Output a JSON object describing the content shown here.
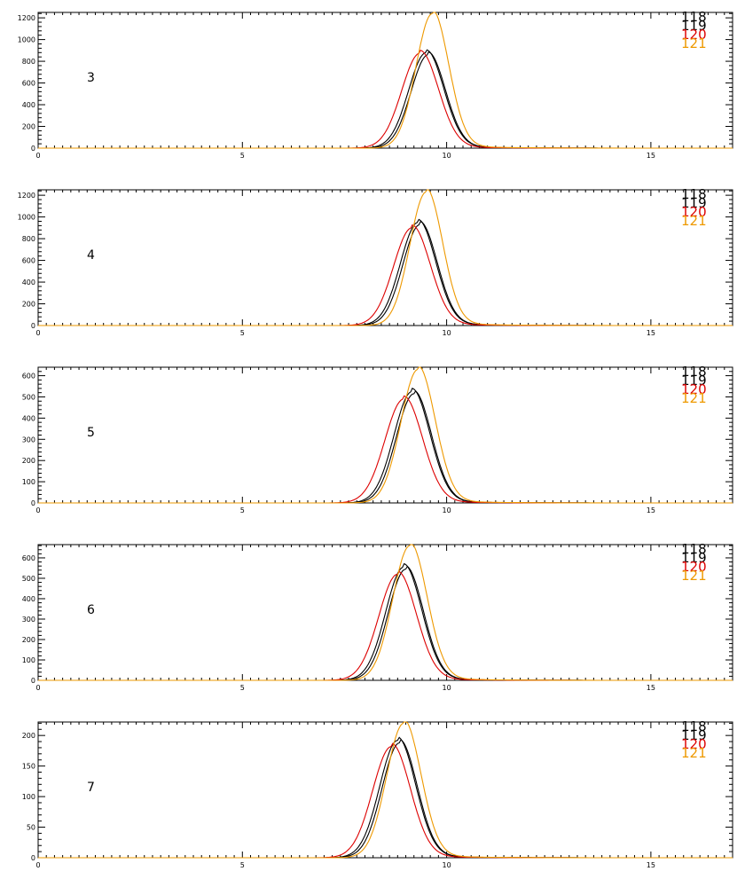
{
  "chart_data": {
    "type": "line",
    "xlim": [
      0,
      17
    ],
    "x_ticks": [
      0,
      5,
      10,
      15
    ],
    "grid": false,
    "legend_placement": "top-right",
    "colors": {
      "118": "#000000",
      "119": "#000000",
      "120": "#dd0000",
      "121": "#ee9900"
    },
    "panels": [
      {
        "label": "3",
        "ylim": [
          0,
          1250
        ],
        "y_ticks": [
          0,
          200,
          400,
          600,
          800,
          1000,
          1200
        ],
        "legend": [
          "118",
          "119",
          "120",
          "121"
        ],
        "series": [
          {
            "name": "118",
            "center": 9.55,
            "peak": 860,
            "width": 0.42
          },
          {
            "name": "119",
            "center": 9.5,
            "peak": 880,
            "width": 0.43
          },
          {
            "name": "120",
            "center": 9.35,
            "peak": 875,
            "width": 0.45
          },
          {
            "name": "121",
            "center": 9.65,
            "peak": 1240,
            "width": 0.4
          }
        ]
      },
      {
        "label": "4",
        "ylim": [
          0,
          1250
        ],
        "y_ticks": [
          0,
          200,
          400,
          600,
          800,
          1000,
          1200
        ],
        "legend": [
          "118",
          "119",
          "120",
          "121"
        ],
        "series": [
          {
            "name": "118",
            "center": 9.35,
            "peak": 930,
            "width": 0.42
          },
          {
            "name": "119",
            "center": 9.3,
            "peak": 950,
            "width": 0.43
          },
          {
            "name": "120",
            "center": 9.15,
            "peak": 900,
            "width": 0.45
          },
          {
            "name": "121",
            "center": 9.5,
            "peak": 1230,
            "width": 0.4
          }
        ]
      },
      {
        "label": "5",
        "ylim": [
          0,
          640
        ],
        "y_ticks": [
          0,
          100,
          200,
          300,
          400,
          500,
          600
        ],
        "legend": [
          "118",
          "119",
          "120",
          "121"
        ],
        "series": [
          {
            "name": "118",
            "center": 9.2,
            "peak": 515,
            "width": 0.43
          },
          {
            "name": "119",
            "center": 9.15,
            "peak": 525,
            "width": 0.44
          },
          {
            "name": "120",
            "center": 8.95,
            "peak": 490,
            "width": 0.46
          },
          {
            "name": "121",
            "center": 9.3,
            "peak": 630,
            "width": 0.42
          }
        ]
      },
      {
        "label": "6",
        "ylim": [
          0,
          665
        ],
        "y_ticks": [
          0,
          100,
          200,
          300,
          400,
          500,
          600
        ],
        "legend": [
          "118",
          "119",
          "120",
          "121"
        ],
        "series": [
          {
            "name": "118",
            "center": 9.0,
            "peak": 545,
            "width": 0.43
          },
          {
            "name": "119",
            "center": 8.95,
            "peak": 555,
            "width": 0.44
          },
          {
            "name": "120",
            "center": 8.8,
            "peak": 520,
            "width": 0.46
          },
          {
            "name": "121",
            "center": 9.1,
            "peak": 660,
            "width": 0.42
          }
        ]
      },
      {
        "label": "7",
        "ylim": [
          0,
          222
        ],
        "y_ticks": [
          0,
          50,
          100,
          150,
          200
        ],
        "legend": [
          "118",
          "119",
          "120",
          "121"
        ],
        "series": [
          {
            "name": "118",
            "center": 8.85,
            "peak": 188,
            "width": 0.43
          },
          {
            "name": "119",
            "center": 8.8,
            "peak": 192,
            "width": 0.44
          },
          {
            "name": "120",
            "center": 8.65,
            "peak": 182,
            "width": 0.46
          },
          {
            "name": "121",
            "center": 8.95,
            "peak": 220,
            "width": 0.42
          }
        ]
      }
    ]
  }
}
